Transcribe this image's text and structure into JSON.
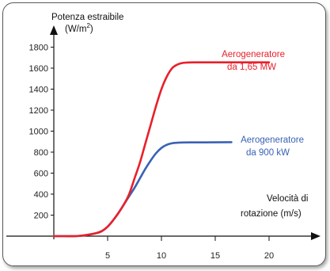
{
  "chart_data": {
    "type": "line",
    "ylabel_line1": "Potenza estraibile",
    "ylabel_line2": "(W/m",
    "ylabel_sup": "2",
    "ylabel_close": ")",
    "xlabel_line1": "Velocità di",
    "xlabel_line2": "rotazione (m/s)",
    "xlim": [
      0,
      23.5
    ],
    "ylim": [
      0,
      2000
    ],
    "xticks": [
      5,
      10,
      15,
      20
    ],
    "yticks": [
      200,
      400,
      600,
      800,
      1000,
      1200,
      1400,
      1600,
      1800
    ],
    "series": [
      {
        "name_line1": "Aerogeneratore",
        "name_line2": "da 1,65 MW",
        "color": "#e8202a",
        "x": [
          0,
          1,
          2,
          3,
          4,
          4.5,
          5,
          5.5,
          6,
          6.5,
          7,
          7.5,
          8,
          8.5,
          9,
          9.5,
          10,
          10.5,
          11,
          11.5,
          12,
          13,
          15,
          18,
          20
        ],
        "y": [
          0,
          0,
          0,
          10,
          30,
          50,
          90,
          150,
          220,
          300,
          400,
          550,
          700,
          880,
          1060,
          1240,
          1400,
          1520,
          1600,
          1635,
          1650,
          1655,
          1655,
          1655,
          1655
        ]
      },
      {
        "name_line1": "Aerogeneratore",
        "name_line2": "da 900 kW",
        "color": "#3a62b4",
        "x": [
          0,
          1,
          2,
          3,
          4,
          4.5,
          5,
          5.5,
          6,
          6.5,
          7,
          7.5,
          8,
          8.5,
          9,
          9.5,
          10,
          10.5,
          11,
          11.5,
          12,
          13,
          14,
          16.5
        ],
        "y": [
          0,
          0,
          0,
          10,
          30,
          50,
          90,
          150,
          220,
          300,
          380,
          460,
          550,
          640,
          720,
          790,
          840,
          870,
          885,
          890,
          892,
          893,
          893,
          895
        ]
      }
    ],
    "arrows": true,
    "grid": false
  }
}
